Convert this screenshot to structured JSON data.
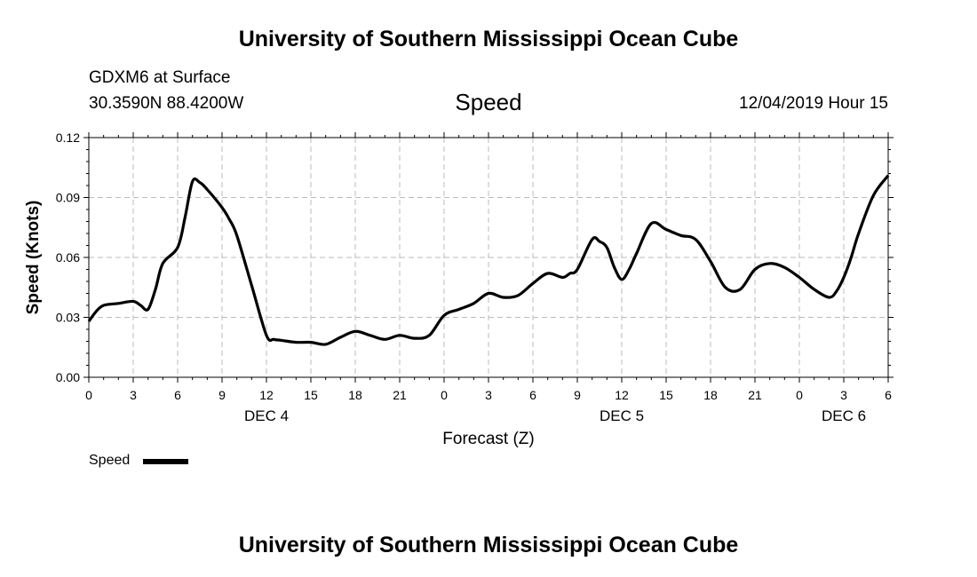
{
  "header": {
    "top_title": "University of Southern Mississippi Ocean Cube",
    "station": "GDXM6 at Surface",
    "coords": "30.3590N 88.4200W",
    "variable": "Speed",
    "datetime": "12/04/2019 Hour 15",
    "bottom_title": "University of Southern Mississippi Ocean Cube"
  },
  "chart_data": {
    "type": "line",
    "title": "Speed",
    "xlabel": "Forecast (Z)",
    "ylabel": "Speed (Knots)",
    "ylim": [
      0,
      0.12
    ],
    "xlim": [
      0,
      54
    ],
    "grid": true,
    "y_ticks": [
      "0.00",
      "0.03",
      "0.06",
      "0.09",
      "0.12"
    ],
    "x_tick_labels": [
      "0",
      "3",
      "6",
      "9",
      "12",
      "15",
      "18",
      "21",
      "0",
      "3",
      "6",
      "9",
      "12",
      "15",
      "18",
      "21",
      "0",
      "3",
      "6"
    ],
    "day_labels": [
      {
        "label": "DEC 4",
        "hour": 12
      },
      {
        "label": "DEC 5",
        "hour": 36
      },
      {
        "label": "DEC 6",
        "hour": 51
      }
    ],
    "legend": {
      "label": "Speed",
      "placement": "bottom-left"
    },
    "series": [
      {
        "name": "Speed",
        "color": "#000000",
        "x": [
          0,
          0.5,
          1,
          2,
          3,
          3.5,
          4,
          4.5,
          5,
          6,
          6.5,
          7,
          7.5,
          8,
          9,
          9.5,
          10,
          11,
          12,
          12.5,
          13,
          14,
          15,
          16,
          17,
          18,
          19,
          20,
          21,
          22,
          23,
          24,
          25,
          26,
          27,
          28,
          29,
          30,
          31,
          32,
          32.5,
          33,
          34,
          34.5,
          35,
          35.5,
          36,
          36.5,
          37,
          38,
          39,
          40,
          41,
          42,
          43,
          44,
          45,
          46,
          47,
          48,
          49,
          50,
          50.5,
          51,
          51.5,
          52,
          53,
          54
        ],
        "values": [
          0.028,
          0.033,
          0.036,
          0.037,
          0.038,
          0.036,
          0.034,
          0.044,
          0.057,
          0.065,
          0.08,
          0.098,
          0.0975,
          0.094,
          0.085,
          0.079,
          0.071,
          0.046,
          0.021,
          0.019,
          0.0185,
          0.0175,
          0.0175,
          0.0165,
          0.02,
          0.023,
          0.021,
          0.019,
          0.021,
          0.0195,
          0.021,
          0.031,
          0.034,
          0.037,
          0.042,
          0.04,
          0.041,
          0.047,
          0.052,
          0.05,
          0.052,
          0.054,
          0.069,
          0.068,
          0.065,
          0.055,
          0.049,
          0.054,
          0.062,
          0.077,
          0.074,
          0.071,
          0.069,
          0.058,
          0.045,
          0.044,
          0.054,
          0.057,
          0.055,
          0.05,
          0.044,
          0.04,
          0.043,
          0.05,
          0.06,
          0.072,
          0.091,
          0.101
        ]
      }
    ]
  }
}
